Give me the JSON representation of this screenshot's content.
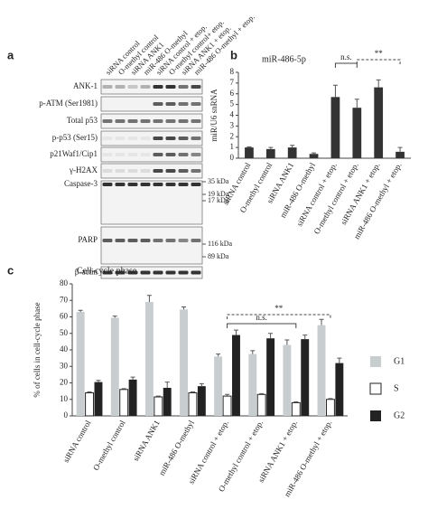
{
  "panel_labels": [
    "a",
    "b",
    "c"
  ],
  "blot": {
    "lanes": [
      "siRNA control",
      "O-methyl control",
      "siRNA ANK1",
      "miR-486 O-methyl",
      "siRNA control + etop.",
      "O-methyl control+ etop.",
      "siRNA ANK1 + etop.",
      "miR-486 O-methyl + etop."
    ],
    "rows": [
      "ANK-1",
      "p-ATM (Ser1981)",
      "Total p53",
      "p-p53 (Ser15)",
      "p21Waf1/Cip1",
      "γ-H2AX",
      "Caspase-3",
      "PARP",
      "β-actin"
    ],
    "markers": [
      "35 kDa",
      "19 kDa",
      "17 kDa",
      "116 kDa",
      "89 kDa"
    ]
  },
  "chart_data": [
    {
      "type": "bar",
      "title": "miR-486-5p",
      "y_label": "miR/U6 snRNA",
      "categories": [
        "siRNA control",
        "O-methyl control",
        "siRNA ANK1",
        "miR-486 O-methyl",
        "siRNA control + etop.",
        "O-methyl control + etop.",
        "siRNA ANK1 + etop.",
        "miR-486 O-methyl + etop."
      ],
      "values": [
        1.0,
        0.85,
        1.0,
        0.4,
        5.7,
        4.7,
        6.6,
        0.6
      ],
      "errors": [
        0.05,
        0.15,
        0.2,
        0.1,
        1.1,
        0.8,
        0.7,
        0.4
      ],
      "color": "#333333",
      "ylim": [
        0,
        8
      ],
      "yticks": [
        0,
        1,
        2,
        3,
        4,
        5,
        6,
        7,
        8
      ],
      "annotations": [
        "n.s.",
        "**"
      ]
    },
    {
      "type": "bar",
      "title": "Cell-cycle phase",
      "y_label": "% of cells in cell-cycle phase",
      "categories": [
        "siRNA control",
        "O-methyl control",
        "siRNA ANK1",
        "miR-486 O-methyl",
        "siRNA control + etop.",
        "O-methyl control + etop.",
        "siRNA ANK1 + etop.",
        "miR-486 O-methyl + etop."
      ],
      "series": [
        {
          "name": "G1",
          "color": "#c8cdd0",
          "values": [
            63,
            59.5,
            69,
            64.5,
            36,
            37.5,
            43,
            55
          ],
          "errors": [
            1,
            1,
            4,
            1.5,
            1.5,
            2,
            3,
            3.5
          ]
        },
        {
          "name": "S",
          "color": "#ffffff",
          "values": [
            14,
            16,
            11.5,
            14,
            12,
            13,
            8,
            10
          ],
          "errors": [
            0.5,
            0.5,
            0.5,
            0.5,
            1,
            0.5,
            0.5,
            0.5
          ]
        },
        {
          "name": "G2",
          "color": "#222222",
          "values": [
            20.5,
            22,
            17,
            18,
            49,
            47,
            46.5,
            32
          ],
          "errors": [
            1,
            1.5,
            3.5,
            1.5,
            3,
            3,
            2.5,
            3
          ]
        }
      ],
      "ylim": [
        0,
        80
      ],
      "yticks": [
        0,
        10,
        20,
        30,
        40,
        50,
        60,
        70,
        80
      ],
      "annotations": [
        "n.s.",
        "**"
      ]
    }
  ]
}
